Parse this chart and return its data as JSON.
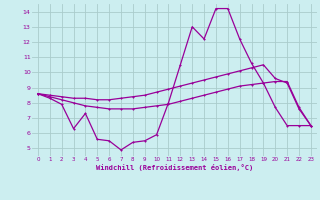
{
  "xlabel": "Windchill (Refroidissement éolien,°C)",
  "background_color": "#cceef0",
  "grid_color": "#aacccc",
  "line_color": "#990099",
  "xlim": [
    -0.5,
    23.5
  ],
  "ylim": [
    4.5,
    14.5
  ],
  "yticks": [
    5,
    6,
    7,
    8,
    9,
    10,
    11,
    12,
    13,
    14
  ],
  "xticks": [
    0,
    1,
    2,
    3,
    4,
    5,
    6,
    7,
    8,
    9,
    10,
    11,
    12,
    13,
    14,
    15,
    16,
    17,
    18,
    19,
    20,
    21,
    22,
    23
  ],
  "series1_x": [
    0,
    1,
    2,
    3,
    4,
    5,
    6,
    7,
    8,
    9,
    10,
    11,
    12,
    13,
    14,
    15,
    16,
    17,
    18,
    19,
    20,
    21,
    22,
    23
  ],
  "series1_y": [
    8.6,
    8.3,
    7.9,
    6.3,
    7.3,
    5.6,
    5.5,
    4.9,
    5.4,
    5.5,
    5.9,
    8.0,
    10.5,
    13.0,
    12.2,
    14.2,
    14.2,
    12.2,
    10.6,
    9.3,
    7.7,
    6.5,
    6.5,
    6.5
  ],
  "series2_x": [
    0,
    1,
    2,
    3,
    4,
    5,
    6,
    7,
    8,
    9,
    10,
    11,
    12,
    13,
    14,
    15,
    16,
    17,
    18,
    19,
    20,
    21,
    22,
    23
  ],
  "series2_y": [
    8.6,
    8.5,
    8.4,
    8.3,
    8.3,
    8.2,
    8.2,
    8.3,
    8.4,
    8.5,
    8.7,
    8.9,
    9.1,
    9.3,
    9.5,
    9.7,
    9.9,
    10.1,
    10.3,
    10.5,
    9.6,
    9.3,
    7.6,
    6.5
  ],
  "series3_x": [
    0,
    1,
    2,
    3,
    4,
    5,
    6,
    7,
    8,
    9,
    10,
    11,
    12,
    13,
    14,
    15,
    16,
    17,
    18,
    19,
    20,
    21,
    22,
    23
  ],
  "series3_y": [
    8.6,
    8.4,
    8.2,
    8.0,
    7.8,
    7.7,
    7.6,
    7.6,
    7.6,
    7.7,
    7.8,
    7.9,
    8.1,
    8.3,
    8.5,
    8.7,
    8.9,
    9.1,
    9.2,
    9.3,
    9.4,
    9.4,
    7.7,
    6.5
  ]
}
